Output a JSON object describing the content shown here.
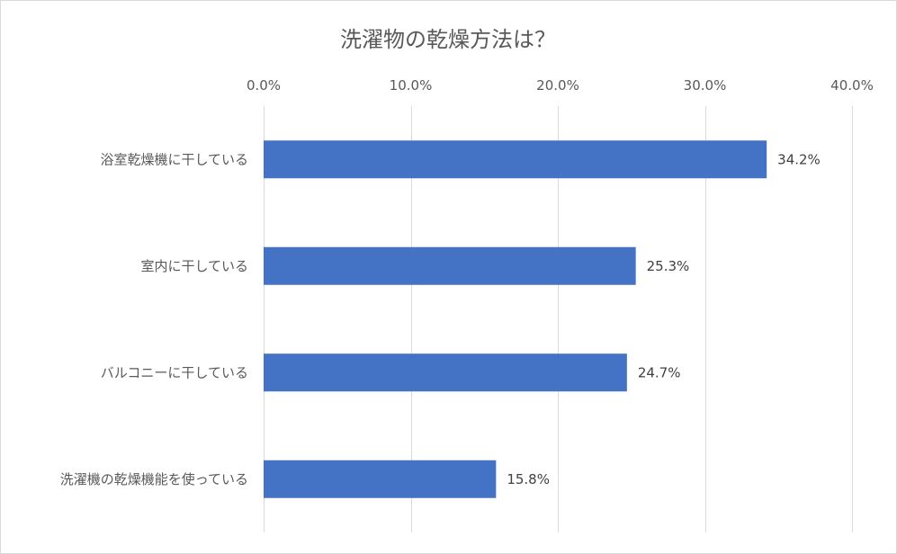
{
  "chart_data": {
    "type": "bar",
    "orientation": "horizontal",
    "title": "洗濯物の乾燥方法は？",
    "categories": [
      "浴室乾燥機に干している",
      "室内に干している",
      "バルコニーに干している",
      "洗濯機の乾燥機能を使っている"
    ],
    "values": [
      34.2,
      25.3,
      24.7,
      15.8
    ],
    "data_labels": [
      "34.2%",
      "25.3%",
      "24.7%",
      "15.8%"
    ],
    "xlim": [
      0,
      40
    ],
    "x_ticks": [
      0,
      10,
      20,
      30,
      40
    ],
    "x_tick_labels": [
      "0.0%",
      "10.0%",
      "20.0%",
      "30.0%",
      "40.0%"
    ],
    "x_axis_position": "top",
    "grid": true,
    "legend": "none",
    "bar_color": "#4472C4"
  }
}
